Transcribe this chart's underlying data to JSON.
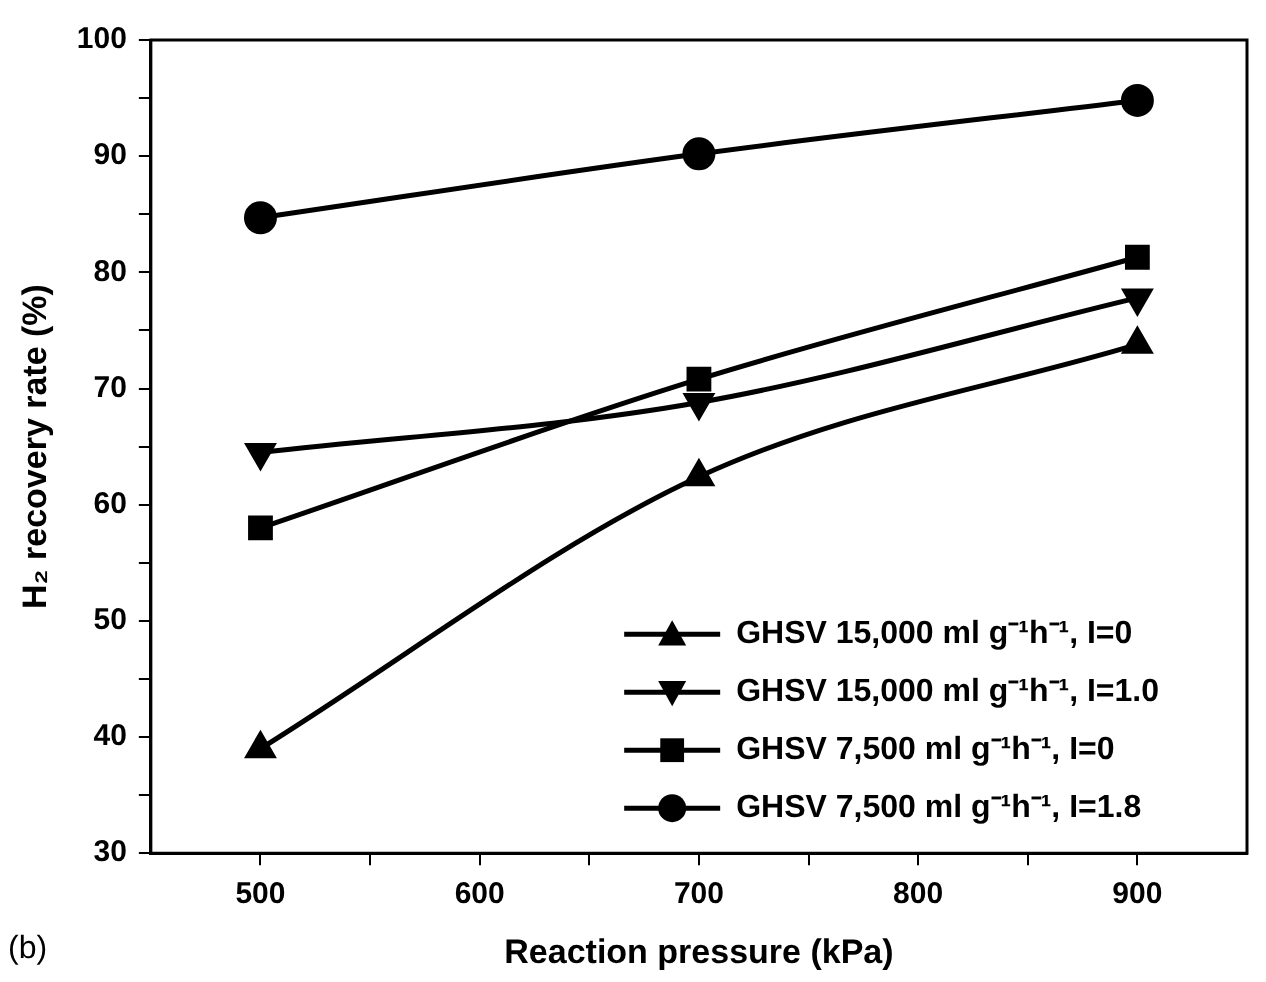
{
  "chart_data": {
    "type": "line",
    "xlabel": "Reaction pressure (kPa)",
    "ylabel": "H₂ recovery rate (%)",
    "x": [
      500,
      700,
      900
    ],
    "series": [
      {
        "name": "GHSV 15,000 ml g⁻¹h⁻¹, I=0",
        "color": "#000000",
        "marker": "triangle",
        "values": [
          39,
          62.4,
          73.8
        ]
      },
      {
        "name": "GHSV 15,000 ml g⁻¹h⁻¹, I=1.0",
        "color": "#000000",
        "marker": "triangle-down",
        "values": [
          64.5,
          68.8,
          77.8
        ]
      },
      {
        "name": "GHSV 7,500 ml g⁻¹h⁻¹, I=0",
        "color": "#000000",
        "marker": "square",
        "values": [
          58,
          70.8,
          81.3
        ]
      },
      {
        "name": "GHSV 7,500 ml g⁻¹h⁻¹, I=1.8",
        "color": "#000000",
        "marker": "circle",
        "values": [
          84.7,
          90.2,
          94.8
        ]
      }
    ],
    "xlim": [
      450,
      950
    ],
    "xticks": [
      500,
      {
        "value": 550,
        "label": null
      },
      600,
      {
        "value": 650,
        "label": null
      },
      700,
      {
        "value": 750,
        "label": null
      },
      800,
      {
        "value": 850,
        "label": null
      },
      900
    ],
    "ylim": [
      30,
      100
    ],
    "yticks": [
      30,
      {
        "value": 35,
        "label": null
      },
      40,
      {
        "value": 45,
        "label": null
      },
      50,
      {
        "value": 55,
        "label": null
      },
      60,
      {
        "value": 65,
        "label": null
      },
      70,
      {
        "value": 75,
        "label": null
      },
      80,
      {
        "value": 85,
        "label": null
      },
      90,
      {
        "value": 95,
        "label": null
      },
      100
    ],
    "legend": "bottom right",
    "grid": false,
    "line_style": "solid",
    "annotations": [
      "(b)"
    ]
  }
}
